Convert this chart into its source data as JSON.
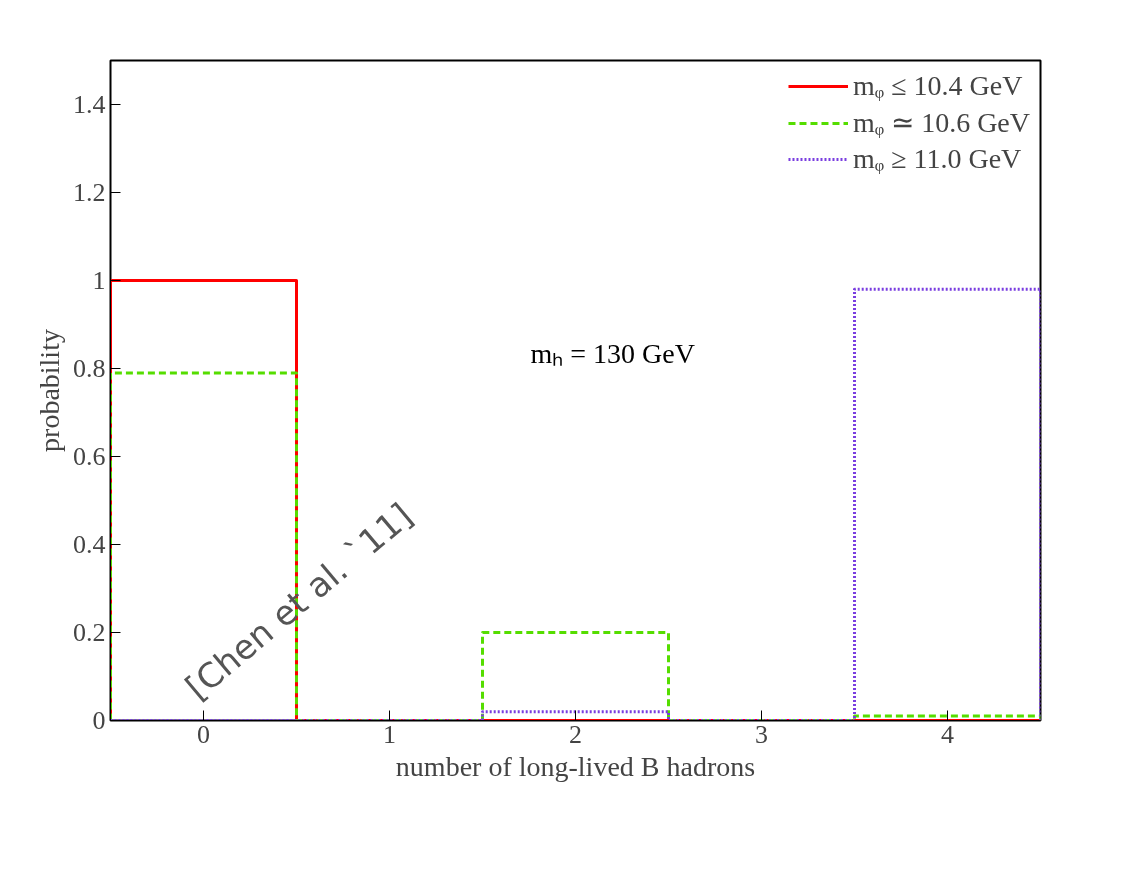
{
  "chart_data": {
    "type": "histogram",
    "xlabel": "number of long-lived B hadrons",
    "ylabel": "probability",
    "bins": [
      -0.5,
      0.5,
      1.5,
      2.5,
      3.5,
      4.5
    ],
    "xlim": [
      -0.5,
      4.5
    ],
    "xticks": [
      0,
      1,
      2,
      3,
      4
    ],
    "ylim": [
      0,
      1.5
    ],
    "yticks": [
      0,
      0.2,
      0.4,
      0.6,
      0.8,
      1,
      1.2,
      1.4
    ],
    "series": [
      {
        "name": "mᵩ ≤ 10.4 GeV",
        "color": "#ff0000",
        "line_style": "solid",
        "values": [
          1,
          0,
          0,
          0,
          0
        ]
      },
      {
        "name": "mᵩ ≃ 10.6 GeV",
        "color": "#55dd00",
        "line_style": "dashed",
        "values": [
          0.79,
          0,
          0.2,
          0,
          0.01
        ]
      },
      {
        "name": "mᵩ ≥ 11.0 GeV",
        "color": "#7a3ee0",
        "line_style": "dotted",
        "values": [
          0,
          0,
          0.02,
          0,
          0.98
        ]
      }
    ],
    "annotations": [
      "mₕ = 130 GeV",
      "[Chen et al. `11]"
    ],
    "legend": "top right",
    "grid": false
  }
}
